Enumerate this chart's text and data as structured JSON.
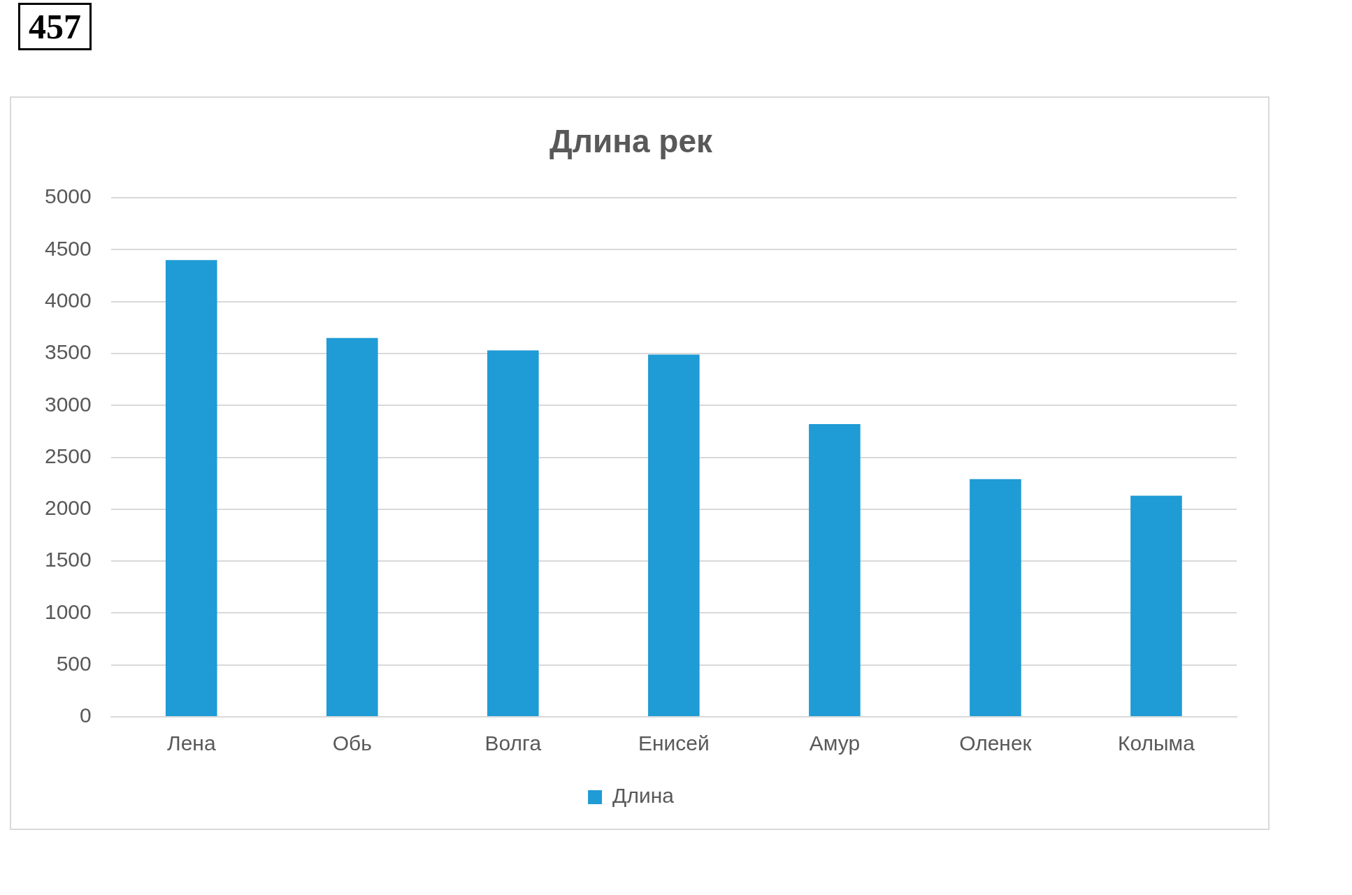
{
  "chart_data": {
    "type": "bar",
    "title": "Длина рек",
    "categories": [
      "Лена",
      "Обь",
      "Волга",
      "Енисей",
      "Амур",
      "Оленек",
      "Колыма"
    ],
    "series": [
      {
        "name": "Длина",
        "color": "#1f9bd5",
        "values": [
          4400,
          3650,
          3530,
          3490,
          2820,
          2290,
          2130
        ]
      }
    ],
    "ylim": [
      0,
      5000
    ],
    "yticks": [
      0,
      500,
      1000,
      1500,
      2000,
      2500,
      3000,
      3500,
      4000,
      4500,
      5000
    ],
    "grid": "y",
    "legend": "bottom",
    "annotations": [
      "457"
    ]
  }
}
